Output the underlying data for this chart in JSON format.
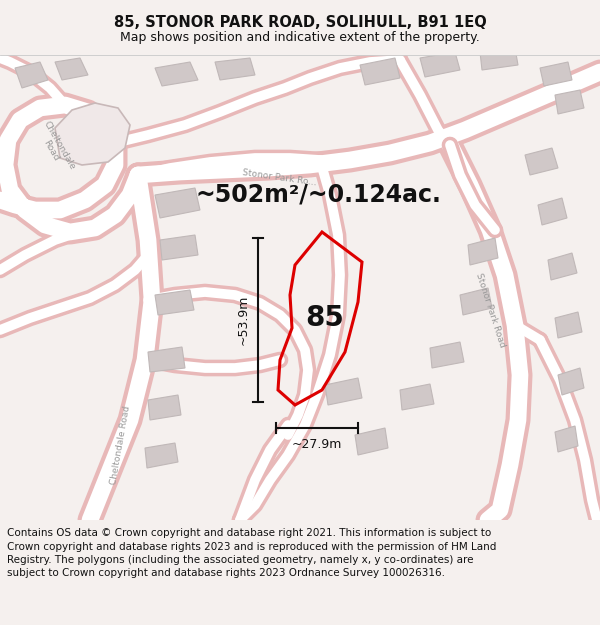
{
  "title": "85, STONOR PARK ROAD, SOLIHULL, B91 1EQ",
  "subtitle": "Map shows position and indicative extent of the property.",
  "area_text": "~502m²/~0.124ac.",
  "dim_width": "~27.9m",
  "dim_height": "~53.9m",
  "property_label": "85",
  "footer": "Contains OS data © Crown copyright and database right 2021. This information is subject to Crown copyright and database rights 2023 and is reproduced with the permission of HM Land Registry. The polygons (including the associated geometry, namely x, y co-ordinates) are subject to Crown copyright and database rights 2023 Ordnance Survey 100026316.",
  "bg_color": "#f5f0ee",
  "map_bg": "#ffffff",
  "road_edge_color": "#e8b8b8",
  "road_center_color": "#ffffff",
  "building_color": "#d0c8c8",
  "building_edge": "#c0b8b8",
  "property_color": "#dd0000",
  "dim_color": "#111111",
  "text_color": "#111111",
  "road_label_color": "#999999",
  "title_fontsize": 10.5,
  "subtitle_fontsize": 9,
  "area_fontsize": 17,
  "label_fontsize": 20,
  "dim_fontsize": 9,
  "footer_fontsize": 7.5
}
